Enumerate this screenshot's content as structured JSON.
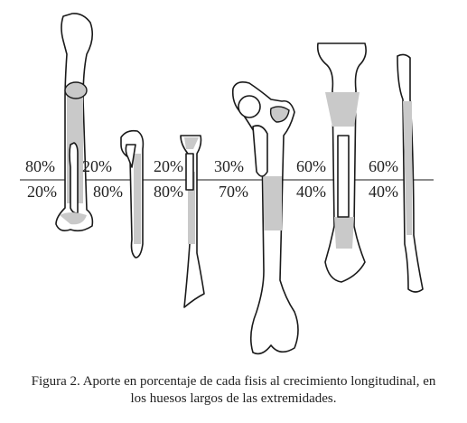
{
  "caption": {
    "line1": "Figura 2. Aporte en porcentaje de cada fisis al crecimiento longitudinal, en",
    "line2": "los huesos largos de las extremidades."
  },
  "bones": [
    {
      "upper": "80%",
      "lower": "20%"
    },
    {
      "upper": "20%",
      "lower": "80%"
    },
    {
      "upper": "20%",
      "lower": "80%"
    },
    {
      "upper": "30%",
      "lower": "70%"
    },
    {
      "upper": "60%",
      "lower": "40%"
    },
    {
      "upper": "60%",
      "lower": "40%"
    }
  ],
  "colors": {
    "shade": "#c9c9c9",
    "outline": "#1a1a1a"
  }
}
